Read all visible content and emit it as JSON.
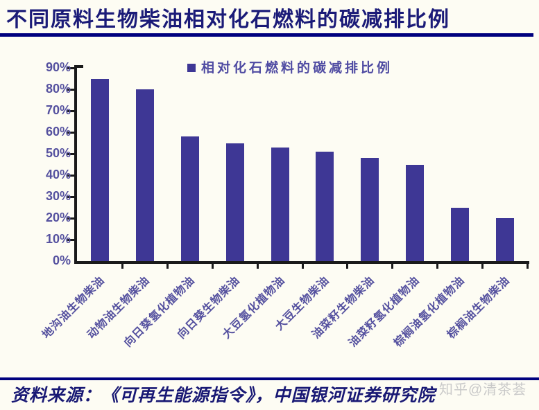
{
  "title": "不同原料生物柴油相对化石燃料的碳减排比例",
  "source": "资料来源：《可再生能源指令》，中国银河证券研究院",
  "watermark": "知乎@清茶荟",
  "colors": {
    "bar": "#3e3795",
    "accent_line": "#00017e",
    "axis_text": "#55519f",
    "title_text": "#1b1b78",
    "axis_line": "#1a1a1a",
    "background": "#fdfcf3"
  },
  "chart_data": {
    "type": "bar",
    "title": "不同原料生物柴油相对化石燃料的碳减排比例",
    "legend": "相对化石燃料的碳减排比例",
    "legend_position": "top-center",
    "categories": [
      "地沟油生物柴油",
      "动物油生物柴油",
      "向日葵氢化植物油",
      "向日葵生物柴油",
      "大豆氢化植物油",
      "大豆生物柴油",
      "油菜籽生物柴油",
      "油菜籽氢化植物油",
      "棕榈油氢化植物油",
      "棕榈油生物柴油"
    ],
    "values": [
      85,
      80,
      58,
      55,
      53,
      51,
      48,
      45,
      25,
      20
    ],
    "unit": "%",
    "xlabel": "",
    "ylabel": "",
    "ylim": [
      0,
      90
    ],
    "yticks": [
      "0%",
      "10%",
      "20%",
      "30%",
      "40%",
      "50%",
      "60%",
      "70%",
      "80%",
      "90%"
    ],
    "grid": false,
    "x_tick_rotation": 45
  }
}
